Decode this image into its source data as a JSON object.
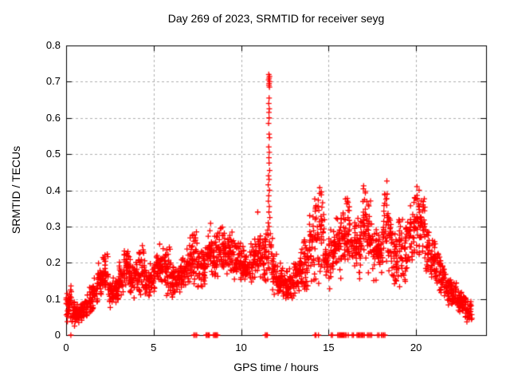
{
  "page": {
    "background_color": "#ffffff",
    "text_color": "#000000"
  },
  "chart_data": {
    "type": "scatter",
    "title": "Day 269 of 2023, SRMTID for receiver seyg",
    "xlabel": "GPS time / hours",
    "ylabel": "SRMTID / TECUs",
    "xlim": [
      0,
      24
    ],
    "ylim": [
      0,
      0.8
    ],
    "xticks": [
      0,
      5,
      10,
      15,
      20
    ],
    "yticks": [
      0,
      0.1,
      0.2,
      0.3,
      0.4,
      0.5,
      0.6,
      0.7,
      0.8
    ],
    "grid": true,
    "grid_style": "dashed",
    "grid_color": "#b0b0b0",
    "axis_color": "#000000",
    "marker": "plus",
    "marker_color": "#ff0000",
    "marker_size": 7,
    "legend": "none",
    "seed": 269,
    "series_name": "SRMTID",
    "bands_note": "dense scatter summarized as [x_start,x_end,y_min,y_max,n_points] read from plot",
    "bands": [
      [
        0.0,
        0.3,
        0.03,
        0.15,
        40
      ],
      [
        0.3,
        0.6,
        0.02,
        0.1,
        36
      ],
      [
        0.6,
        0.9,
        0.03,
        0.09,
        34
      ],
      [
        0.9,
        1.2,
        0.04,
        0.11,
        30
      ],
      [
        1.2,
        1.5,
        0.05,
        0.14,
        30
      ],
      [
        1.5,
        1.8,
        0.07,
        0.16,
        30
      ],
      [
        1.8,
        2.1,
        0.1,
        0.21,
        32
      ],
      [
        2.1,
        2.4,
        0.11,
        0.23,
        32
      ],
      [
        2.4,
        2.7,
        0.07,
        0.16,
        30
      ],
      [
        2.7,
        3.0,
        0.08,
        0.17,
        30
      ],
      [
        3.0,
        3.3,
        0.1,
        0.21,
        30
      ],
      [
        3.3,
        3.6,
        0.12,
        0.25,
        32
      ],
      [
        3.6,
        3.9,
        0.1,
        0.22,
        30
      ],
      [
        3.9,
        4.2,
        0.1,
        0.24,
        30
      ],
      [
        4.2,
        4.5,
        0.1,
        0.26,
        30
      ],
      [
        4.5,
        4.8,
        0.09,
        0.19,
        30
      ],
      [
        4.8,
        5.1,
        0.1,
        0.21,
        30
      ],
      [
        5.1,
        5.4,
        0.12,
        0.27,
        30
      ],
      [
        5.4,
        5.7,
        0.13,
        0.25,
        30
      ],
      [
        5.7,
        6.0,
        0.1,
        0.26,
        30
      ],
      [
        6.0,
        6.3,
        0.1,
        0.2,
        30
      ],
      [
        6.3,
        6.6,
        0.11,
        0.21,
        30
      ],
      [
        6.6,
        6.9,
        0.12,
        0.23,
        30
      ],
      [
        6.9,
        7.2,
        0.13,
        0.28,
        30
      ],
      [
        7.2,
        7.5,
        0.12,
        0.3,
        30
      ],
      [
        7.5,
        7.8,
        0.12,
        0.25,
        30
      ],
      [
        7.8,
        8.1,
        0.13,
        0.27,
        30
      ],
      [
        8.1,
        8.4,
        0.15,
        0.31,
        32
      ],
      [
        8.4,
        8.7,
        0.14,
        0.29,
        30
      ],
      [
        8.7,
        9.0,
        0.15,
        0.31,
        30
      ],
      [
        9.0,
        9.3,
        0.16,
        0.3,
        30
      ],
      [
        9.3,
        9.6,
        0.15,
        0.29,
        30
      ],
      [
        9.6,
        9.9,
        0.14,
        0.27,
        30
      ],
      [
        9.9,
        10.2,
        0.14,
        0.26,
        30
      ],
      [
        10.2,
        10.5,
        0.13,
        0.25,
        30
      ],
      [
        10.5,
        10.8,
        0.12,
        0.27,
        30
      ],
      [
        10.8,
        11.1,
        0.15,
        0.32,
        30
      ],
      [
        11.1,
        11.4,
        0.13,
        0.3,
        30
      ],
      [
        11.4,
        11.8,
        0.13,
        0.31,
        28
      ],
      [
        11.8,
        12.1,
        0.1,
        0.24,
        30
      ],
      [
        12.1,
        12.4,
        0.09,
        0.21,
        30
      ],
      [
        12.4,
        12.7,
        0.08,
        0.19,
        30
      ],
      [
        12.7,
        13.0,
        0.08,
        0.2,
        30
      ],
      [
        13.0,
        13.3,
        0.09,
        0.22,
        30
      ],
      [
        13.3,
        13.6,
        0.1,
        0.26,
        30
      ],
      [
        13.6,
        13.9,
        0.1,
        0.28,
        30
      ],
      [
        13.9,
        14.2,
        0.12,
        0.35,
        30
      ],
      [
        14.2,
        14.5,
        0.12,
        0.46,
        30
      ],
      [
        14.5,
        14.8,
        0.13,
        0.42,
        28
      ],
      [
        14.8,
        15.1,
        0.12,
        0.28,
        28
      ],
      [
        15.1,
        15.4,
        0.14,
        0.3,
        30
      ],
      [
        15.4,
        15.7,
        0.15,
        0.33,
        30
      ],
      [
        15.7,
        16.0,
        0.17,
        0.38,
        30
      ],
      [
        16.0,
        16.3,
        0.18,
        0.4,
        30
      ],
      [
        16.3,
        16.6,
        0.16,
        0.34,
        30
      ],
      [
        16.6,
        16.9,
        0.15,
        0.33,
        30
      ],
      [
        16.9,
        17.2,
        0.17,
        0.44,
        30
      ],
      [
        17.2,
        17.5,
        0.16,
        0.43,
        30
      ],
      [
        17.5,
        17.8,
        0.14,
        0.3,
        30
      ],
      [
        17.8,
        18.1,
        0.15,
        0.31,
        30
      ],
      [
        18.1,
        18.4,
        0.17,
        0.43,
        30
      ],
      [
        18.4,
        18.7,
        0.15,
        0.36,
        30
      ],
      [
        18.7,
        19.0,
        0.12,
        0.29,
        30
      ],
      [
        19.0,
        19.3,
        0.13,
        0.35,
        30
      ],
      [
        19.3,
        19.6,
        0.13,
        0.33,
        30
      ],
      [
        19.6,
        19.9,
        0.17,
        0.39,
        30
      ],
      [
        19.9,
        20.2,
        0.2,
        0.41,
        32
      ],
      [
        20.2,
        20.5,
        0.22,
        0.39,
        32
      ],
      [
        20.5,
        20.8,
        0.15,
        0.32,
        30
      ],
      [
        20.8,
        21.1,
        0.14,
        0.28,
        30
      ],
      [
        21.1,
        21.4,
        0.12,
        0.24,
        30
      ],
      [
        21.4,
        21.7,
        0.1,
        0.21,
        30
      ],
      [
        21.7,
        22.0,
        0.08,
        0.17,
        30
      ],
      [
        22.0,
        22.3,
        0.07,
        0.16,
        30
      ],
      [
        22.3,
        22.6,
        0.05,
        0.14,
        30
      ],
      [
        22.6,
        22.9,
        0.04,
        0.12,
        30
      ],
      [
        22.9,
        23.2,
        0.03,
        0.1,
        26
      ]
    ],
    "spike_points": [
      [
        11.58,
        0.72
      ],
      [
        11.62,
        0.715
      ],
      [
        11.6,
        0.71
      ],
      [
        11.57,
        0.705
      ],
      [
        11.63,
        0.7
      ],
      [
        11.6,
        0.695
      ],
      [
        11.59,
        0.69
      ],
      [
        11.62,
        0.685
      ],
      [
        11.6,
        0.655
      ],
      [
        11.58,
        0.64
      ],
      [
        11.61,
        0.625
      ],
      [
        11.59,
        0.615
      ],
      [
        11.6,
        0.6
      ],
      [
        11.57,
        0.585
      ],
      [
        11.6,
        0.555
      ],
      [
        11.62,
        0.545
      ],
      [
        11.58,
        0.52
      ],
      [
        11.61,
        0.505
      ],
      [
        11.59,
        0.49
      ],
      [
        11.6,
        0.475
      ],
      [
        11.63,
        0.455
      ],
      [
        11.57,
        0.44
      ],
      [
        11.6,
        0.43
      ],
      [
        11.55,
        0.415
      ],
      [
        11.62,
        0.4
      ],
      [
        11.58,
        0.385
      ],
      [
        11.56,
        0.37
      ],
      [
        11.61,
        0.355
      ],
      [
        11.59,
        0.34
      ],
      [
        11.64,
        0.325
      ],
      [
        11.55,
        0.31
      ],
      [
        11.6,
        0.3
      ],
      [
        11.52,
        0.29
      ],
      [
        11.67,
        0.28
      ],
      [
        10.95,
        0.34
      ],
      [
        13.92,
        0.33
      ],
      [
        20.05,
        0.41
      ]
    ],
    "zero_marks": [
      0.27,
      7.3,
      7.38,
      7.46,
      8.0,
      8.06,
      8.12,
      8.18,
      8.42,
      8.48,
      8.52,
      8.56,
      8.6,
      8.65,
      11.38,
      11.44,
      11.5,
      14.22,
      14.28,
      14.42,
      15.15,
      15.22,
      15.52,
      15.58,
      15.63,
      15.68,
      15.73,
      15.78,
      15.83,
      15.88,
      15.94,
      16.0,
      16.12,
      16.35,
      16.42,
      16.62,
      16.68,
      16.74,
      16.8,
      16.86,
      16.92,
      16.98,
      17.04,
      17.22,
      17.3,
      17.38,
      17.46,
      17.8,
      17.88,
      18.02,
      18.08,
      18.15,
      18.22
    ]
  }
}
